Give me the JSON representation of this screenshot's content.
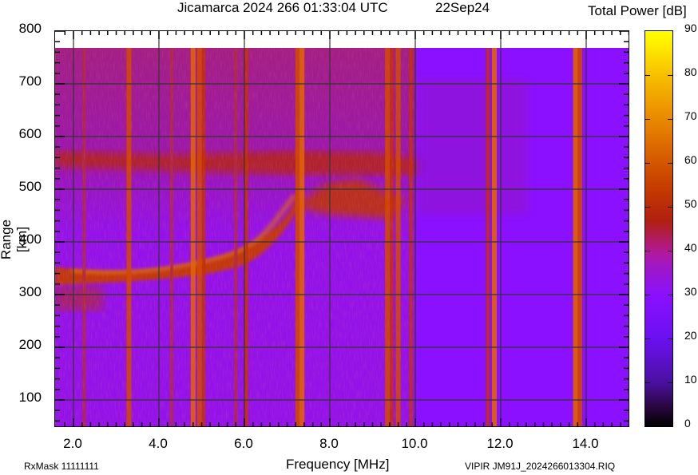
{
  "header": {
    "title": "Jicamarca 2024 266 01:33:04 UTC",
    "date": "22Sep24",
    "colorbar_title": "Total Power [dB]"
  },
  "axes": {
    "xlabel": "Frequency [MHz]",
    "ylabel": "Range [km]",
    "xticks": [
      "2.0",
      "4.0",
      "6.0",
      "8.0",
      "10.0",
      "12.0",
      "14.0"
    ],
    "yticks": [
      "800",
      "700",
      "600",
      "500",
      "400",
      "300",
      "200",
      "100"
    ],
    "colorbar_ticks": [
      "90",
      "80",
      "70",
      "60",
      "50",
      "40",
      "30",
      "20",
      "10",
      "0"
    ]
  },
  "footer": {
    "left": "RxMask 11111111",
    "right": "VIPIR  JM91J_2024266013304.RIQ"
  },
  "colors": {
    "background_noise": "#8a10ff",
    "trace": "#c43a00",
    "trace_peak": "#e07000",
    "interference": "#c83200",
    "grid": "#333333"
  },
  "chart_data": {
    "type": "heatmap",
    "title": "Jicamarca 2024 266 01:33:04 UTC   22Sep24",
    "xlabel": "Frequency [MHz]",
    "ylabel": "Range [km]",
    "colorbar_label": "Total Power [dB]",
    "xlim": [
      1.6,
      15.0
    ],
    "ylim": [
      40,
      800
    ],
    "data_range_top_km": 768,
    "clim": [
      0,
      90
    ],
    "grid": true,
    "x_ticks": [
      2.0,
      4.0,
      6.0,
      8.0,
      10.0,
      12.0,
      14.0
    ],
    "y_ticks": [
      100,
      200,
      300,
      400,
      500,
      600,
      700,
      800
    ],
    "colorbar_ticks": [
      0,
      10,
      20,
      30,
      40,
      50,
      60,
      70,
      80,
      90
    ],
    "background_level_dB": 30,
    "echo_trace": {
      "description": "F-layer O-mode ionogram trace rising with frequency",
      "points_mhz_km": [
        [
          1.6,
          340
        ],
        [
          2.5,
          345
        ],
        [
          3.5,
          352
        ],
        [
          4.5,
          362
        ],
        [
          5.5,
          380
        ],
        [
          6.2,
          400
        ],
        [
          6.8,
          430
        ],
        [
          7.2,
          465
        ],
        [
          7.4,
          500
        ],
        [
          7.8,
          475
        ],
        [
          8.4,
          460
        ],
        [
          9.0,
          460
        ],
        [
          9.3,
          470
        ]
      ],
      "level_dB": 58
    },
    "multihop_trace": {
      "description": "Second-hop diffuse echo",
      "points_mhz_km": [
        [
          1.6,
          560
        ],
        [
          3.0,
          565
        ],
        [
          5.0,
          560
        ],
        [
          7.0,
          560
        ],
        [
          8.0,
          570
        ],
        [
          9.5,
          580
        ],
        [
          10.0,
          590
        ]
      ],
      "level_dB": 48
    },
    "lower_diffuse_echo": {
      "freq_range_mhz": [
        1.6,
        2.7
      ],
      "range_km": [
        280,
        300
      ],
      "level_dB": 45
    },
    "interference_lines_mhz": [
      {
        "f": 2.25,
        "dB": 47
      },
      {
        "f": 3.3,
        "dB": 58
      },
      {
        "f": 4.3,
        "dB": 46
      },
      {
        "f": 4.8,
        "dB": 60
      },
      {
        "f": 4.95,
        "dB": 55
      },
      {
        "f": 5.05,
        "dB": 52
      },
      {
        "f": 5.8,
        "dB": 48
      },
      {
        "f": 6.05,
        "dB": 50
      },
      {
        "f": 7.25,
        "dB": 57
      },
      {
        "f": 7.35,
        "dB": 62
      },
      {
        "f": 9.35,
        "dB": 55
      },
      {
        "f": 9.45,
        "dB": 52
      },
      {
        "f": 9.6,
        "dB": 55
      },
      {
        "f": 9.9,
        "dB": 50
      },
      {
        "f": 11.7,
        "dB": 52
      },
      {
        "f": 11.85,
        "dB": 62
      },
      {
        "f": 13.75,
        "dB": 64
      },
      {
        "f": 13.85,
        "dB": 55
      }
    ]
  }
}
